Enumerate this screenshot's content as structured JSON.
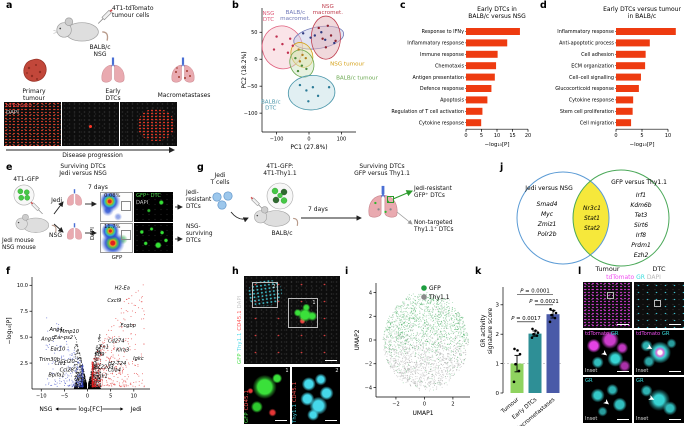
{
  "panel_labels": {
    "a": "a",
    "b": "b",
    "c": "c",
    "d": "d",
    "e": "e",
    "f": "f",
    "g": "g",
    "h": "h",
    "i": "i",
    "j": "j",
    "k": "k",
    "l": "l"
  },
  "panel_a": {
    "injection": "4T1-tdTomato\ntumour cells",
    "host": "BALB/c\nNSG",
    "stage1": "Primary\ntumour",
    "stage2": "Early\nDTCs",
    "stage3": "Macrometastases",
    "marker1": "tdTomato",
    "marker2": "DAPI",
    "marker1_color": "#ff4545",
    "marker2_color": "#c8c8c8",
    "progression": "Disease progression"
  },
  "panel_e": {
    "title": "Surviving DTCs\nJedi versus NSG",
    "cells": "4T1-GFP",
    "mice": "Jedi mouse\nNSG mouse",
    "arm1": "Jedi",
    "arm2": "NSG",
    "duration": "7 days",
    "pct1": "0.08%",
    "pct2": "11.7%",
    "flow_y": "DAPI",
    "flow_x": "GFP",
    "img_marker1": "GFP⁺ DTC",
    "img_marker2": "DAPI",
    "outcome1": "Jedi-\nresistant\nDTCs",
    "outcome2": "NSG-\nsurviving\nDTCs"
  },
  "panel_g": {
    "tcells": "Jedi\nT cells",
    "cells": "4T1-GFP:\n4T1-Thy1.1",
    "host": "BALB/c",
    "duration": "7 days",
    "title": "Surviving DTCs\nGFP versus Thy1.1",
    "outcome1": "Jedi-resistant\nGFP⁺ DTCs",
    "outcome2": "Non-targeted\nThy1.1⁺ DTCs"
  },
  "panel_h": {
    "main_markers": [
      {
        "text": "GFP",
        "color": "#4ee04e"
      },
      {
        "text": "Thy1.1",
        "color": "#4ad8e8"
      },
      {
        "text": "CD45.1",
        "color": "#ff5555"
      },
      {
        "text": "DAPI",
        "color": "#c8c8c8"
      }
    ],
    "inset1_markers": [
      {
        "text": "GFP",
        "color": "#4ee04e"
      },
      {
        "text": "CD45.1",
        "color": "#ff5555"
      }
    ],
    "inset2_markers": [
      {
        "text": "Thy1.1",
        "color": "#4ad8e8"
      },
      {
        "text": "CD45.1",
        "color": "#ff5555"
      }
    ],
    "box1": "1",
    "box2": "2"
  },
  "panel_j": {
    "left_title": "Jedi versus NSG",
    "right_title": "GFP versus Thy1.1",
    "left_genes": [
      "Smad4",
      "Myc",
      "Zmiz1",
      "Polr2b"
    ],
    "middle_genes": [
      "Nr3c1",
      "Stat1",
      "Stat2"
    ],
    "right_genes": [
      "Irf1",
      "Kdm6b",
      "Tet3",
      "Sirt6",
      "Irf8",
      "Prdm1",
      "Ezh2"
    ],
    "left_color": "#5b9bd5",
    "right_color": "#4aa858",
    "overlap_color": "#f6e83b"
  },
  "panel_l": {
    "col1": "Tumour",
    "col2": "DTC",
    "top_markers": [
      {
        "text": "tdTomato",
        "color": "#f04df0"
      },
      {
        "text": "GR",
        "color": "#3adede"
      },
      {
        "text": "DAPI",
        "color": "#b8b8b8"
      }
    ],
    "mid_markers": [
      {
        "text": "tdTomato",
        "color": "#f04df0"
      },
      {
        "text": "GR",
        "color": "#3adede"
      }
    ],
    "gr_markers": [
      {
        "text": "GR",
        "color": "#3adede"
      }
    ],
    "inset_tag": "Inset"
  },
  "chart_data": [
    {
      "panel": "b",
      "type": "scatter",
      "xlabel": "PC1 (27.8%)",
      "ylabel": "PC2 (18.2%)",
      "xlim": [
        -145,
        145
      ],
      "ylim": [
        -135,
        95
      ],
      "xticks": [
        -100,
        0,
        100
      ],
      "yticks": [
        50,
        0,
        -50,
        -100
      ],
      "groups": [
        {
          "label": "NSG\nDTC",
          "color": "#e0607e",
          "fill": "#f5c9d2",
          "dot": "#c03050",
          "ellipse": [
            -82,
            22,
            62,
            40,
            -18
          ],
          "label_pos": [
            -125,
            82
          ],
          "points": [
            [
              -100,
              42
            ],
            [
              -82,
              28
            ],
            [
              -65,
              12
            ],
            [
              -58,
              38
            ],
            [
              -108,
              18
            ],
            [
              -50,
              25
            ]
          ]
        },
        {
          "label": "BALB/c\nmacromet.",
          "color": "#7079b8",
          "fill": "#c6c9e6",
          "dot": "#303a80",
          "ellipse": [
            30,
            40,
            78,
            20,
            -10
          ],
          "label_pos": [
            -42,
            84
          ],
          "points": [
            [
              -18,
              48
            ],
            [
              18,
              44
            ],
            [
              50,
              36
            ],
            [
              78,
              30
            ],
            [
              38,
              50
            ],
            [
              5,
              40
            ]
          ]
        },
        {
          "label": "NSG\nmacromet.",
          "color": "#c04050",
          "fill": "#e4b3ba",
          "dot": "#8c2030",
          "ellipse": [
            52,
            40,
            45,
            40,
            0
          ],
          "label_pos": [
            58,
            95
          ],
          "points": [
            [
              30,
              58
            ],
            [
              58,
              62
            ],
            [
              42,
              38
            ],
            [
              68,
              44
            ],
            [
              52,
              22
            ],
            [
              82,
              34
            ]
          ]
        },
        {
          "label": "NSG tumour",
          "color": "#d4a017",
          "fill": "#f2e3a8",
          "dot": "#b08020",
          "ellipse": [
            -22,
            8,
            32,
            24,
            -28
          ],
          "label_pos": [
            118,
            -12
          ],
          "points": [
            [
              -32,
              18
            ],
            [
              -20,
              8
            ],
            [
              -10,
              2
            ],
            [
              -28,
              -4
            ]
          ]
        },
        {
          "label": "BALB/c tumour",
          "color": "#6aa84f",
          "fill": "#cfe6c2",
          "dot": "#4a8a3a",
          "ellipse": [
            -22,
            -8,
            36,
            26,
            -24
          ],
          "label_pos": [
            148,
            -38
          ],
          "points": [
            [
              -42,
              2
            ],
            [
              -22,
              -12
            ],
            [
              -8,
              -18
            ],
            [
              -34,
              -22
            ]
          ]
        },
        {
          "label": "BALB/c\nDTC",
          "color": "#4a96aa",
          "fill": "#c3dfe6",
          "dot": "#2a7a96",
          "ellipse": [
            8,
            -62,
            72,
            32,
            -4
          ],
          "label_pos": [
            -118,
            -82
          ],
          "points": [
            [
              -28,
              -48
            ],
            [
              -8,
              -58
            ],
            [
              12,
              -52
            ],
            [
              28,
              -68
            ],
            [
              62,
              -52
            ],
            [
              -2,
              -78
            ]
          ]
        }
      ]
    },
    {
      "panel": "c",
      "type": "bar",
      "title": "Early DTCs in\nBALB/c versus NSG",
      "xlabel": "−log₁₀[P]",
      "bar_color": "#ee3b10",
      "categories": [
        "Response to IFNγ",
        "Inflammatory response",
        "Immune response",
        "Chemotaxis",
        "Antigen presentation",
        "Defence response",
        "Apoptosis",
        "Regulation of T cell activation",
        "Cytokine response"
      ],
      "values": [
        17.4,
        13.3,
        10.2,
        9.7,
        9.3,
        8.2,
        6.9,
        5.3,
        4.9
      ],
      "xticks": [
        0,
        5,
        10,
        15,
        20
      ],
      "xlim": [
        0,
        20
      ]
    },
    {
      "panel": "d",
      "type": "bar",
      "title": "Early DTCs versus tumour\nin BALB/c",
      "xlabel": "−log₁₀[P]",
      "bar_color": "#ee3b10",
      "categories": [
        "Inflammatory response",
        "Anti-apoptotic process",
        "Cell adhesion",
        "ECM organization",
        "Cell–cell signalling",
        "Glucocorticoid response",
        "Cytokine response",
        "Stem cell proliferation",
        "Cell migration"
      ],
      "values": [
        11.5,
        6.5,
        5.7,
        5.6,
        4.8,
        4.4,
        3.3,
        3.2,
        2.9
      ],
      "xticks": [
        0,
        5,
        10
      ],
      "xlim": [
        0,
        12.3
      ]
    },
    {
      "panel": "f",
      "type": "scatter",
      "subtype": "volcano",
      "ylabel": "−log₁₀[P]",
      "xlabel": "log₂[FC]",
      "left_label": "NSG",
      "right_label": "Jedi",
      "xlim": [
        -12,
        13.5
      ],
      "ylim": [
        0,
        10.8
      ],
      "xticks": [
        -10,
        -5,
        0,
        5,
        10
      ],
      "yticks": [
        2.5,
        5.0,
        7.5,
        10.0
      ],
      "colors": {
        "up": "#e02020",
        "down": "#3040c0",
        "ns": "#000000"
      },
      "genes_up": [
        {
          "n": "H2-Ea",
          "x": 7.5,
          "y": 9.6
        },
        {
          "n": "Cxcl9",
          "x": 5.8,
          "y": 8.4
        },
        {
          "n": "Fcgbp",
          "x": 8.8,
          "y": 6.0
        },
        {
          "n": "Cd274",
          "x": 6.2,
          "y": 4.5
        },
        {
          "n": "Fn1",
          "x": 3.6,
          "y": 3.9
        },
        {
          "n": "Klra3",
          "x": 7.6,
          "y": 3.6
        },
        {
          "n": "Klf9",
          "x": 2.6,
          "y": 3.2
        },
        {
          "n": "Igkc",
          "x": 11.0,
          "y": 2.8
        },
        {
          "n": "H2-T24",
          "x": 6.4,
          "y": 2.3
        },
        {
          "n": "Tsc22d3",
          "x": 3.4,
          "y": 2.0
        },
        {
          "n": "Ctla4",
          "x": 5.8,
          "y": 1.7
        },
        {
          "n": "Sgk1",
          "x": 3.0,
          "y": 1.1
        }
      ],
      "genes_down": [
        {
          "n": "Ang4",
          "x": -6.8,
          "y": 5.6
        },
        {
          "n": "Mmp10",
          "x": -3.9,
          "y": 5.4
        },
        {
          "n": "Ang5",
          "x": -8.6,
          "y": 4.7
        },
        {
          "n": "Ear-ps2",
          "x": -5.2,
          "y": 4.8
        },
        {
          "n": "Ear10",
          "x": -6.4,
          "y": 3.7
        },
        {
          "n": "Trim30b",
          "x": -8.2,
          "y": 2.7
        },
        {
          "n": "Chl1",
          "x": -5.9,
          "y": 2.3
        },
        {
          "n": "Ccl20",
          "x": -4.3,
          "y": 2.5
        },
        {
          "n": "Ccl28",
          "x": -4.5,
          "y": 1.7
        },
        {
          "n": "Bpifa1",
          "x": -6.7,
          "y": 1.2
        }
      ]
    },
    {
      "panel": "i",
      "type": "scatter",
      "subtype": "umap",
      "xlabel": "UMAP1",
      "ylabel": "UMAP2",
      "xlim": [
        -3.4,
        3.2
      ],
      "ylim": [
        -4.8,
        4.8
      ],
      "xticks": [
        -2,
        0,
        2
      ],
      "yticks": [
        4,
        2,
        0,
        -2,
        -4
      ],
      "legend": [
        {
          "label": "GFP",
          "color": "#1e9e40"
        },
        {
          "label": "Thy1.1",
          "color": "#8a8a8a"
        }
      ]
    },
    {
      "panel": "k",
      "type": "bar",
      "subtype": "vbar",
      "ylabel": "GR activity\nsignature score",
      "categories": [
        "Tumour",
        "Early DTCs",
        "Macrometastases"
      ],
      "values": [
        1.0,
        2.02,
        2.68
      ],
      "errors": [
        0.28,
        0.09,
        0.13
      ],
      "colors": [
        "#8fd35f",
        "#2e8f96",
        "#4a5aa8"
      ],
      "points": [
        [
          0.38,
          0.75,
          0.98,
          1.32,
          1.45,
          1.5
        ],
        [
          1.88,
          1.95,
          2.0,
          2.05,
          2.12,
          2.18
        ],
        [
          2.42,
          2.55,
          2.65,
          2.72,
          2.8,
          2.85
        ]
      ],
      "yticks": [
        0,
        1,
        2,
        3
      ],
      "ylim": [
        0,
        3.6
      ],
      "baseline": 1,
      "pvalues": [
        {
          "label": "P = 0.0017",
          "a": 0,
          "b": 1,
          "y": 2.42
        },
        {
          "label": "P = 0.0021",
          "a": 1,
          "b": 2,
          "y": 3.0
        },
        {
          "label": "P = 0.0001",
          "a": 0,
          "b": 2,
          "y": 3.35
        }
      ]
    }
  ]
}
